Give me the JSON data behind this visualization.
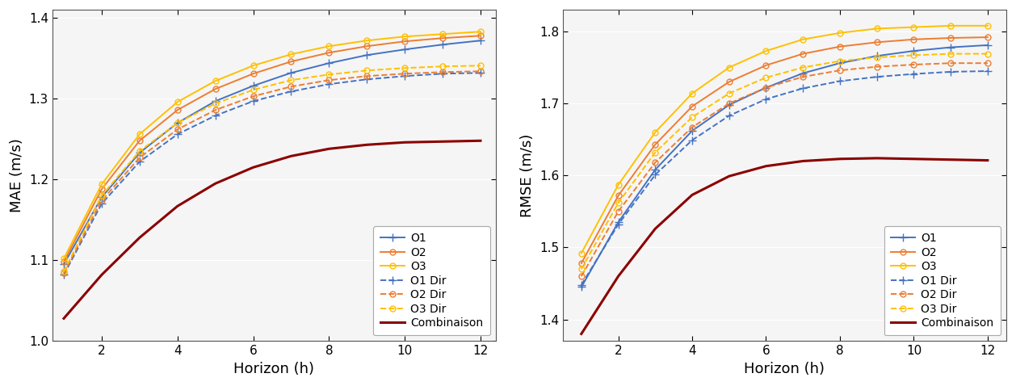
{
  "x": [
    1,
    2,
    3,
    4,
    5,
    6,
    7,
    8,
    9,
    10,
    11,
    12
  ],
  "mae": {
    "O1": [
      1.095,
      1.178,
      1.233,
      1.27,
      1.297,
      1.316,
      1.332,
      1.344,
      1.354,
      1.361,
      1.367,
      1.372
    ],
    "O2": [
      1.098,
      1.188,
      1.248,
      1.286,
      1.312,
      1.331,
      1.346,
      1.357,
      1.365,
      1.371,
      1.375,
      1.378
    ],
    "O3": [
      1.102,
      1.194,
      1.256,
      1.296,
      1.322,
      1.341,
      1.355,
      1.365,
      1.372,
      1.377,
      1.38,
      1.383
    ],
    "O1 Dir": [
      1.082,
      1.17,
      1.222,
      1.256,
      1.279,
      1.297,
      1.309,
      1.318,
      1.324,
      1.328,
      1.331,
      1.332
    ],
    "O2 Dir": [
      1.084,
      1.174,
      1.227,
      1.262,
      1.286,
      1.303,
      1.315,
      1.323,
      1.328,
      1.331,
      1.333,
      1.334
    ],
    "O3 Dir": [
      1.086,
      1.18,
      1.235,
      1.27,
      1.294,
      1.311,
      1.323,
      1.33,
      1.335,
      1.338,
      1.34,
      1.341
    ],
    "Combinaison": [
      1.028,
      1.082,
      1.128,
      1.167,
      1.195,
      1.215,
      1.229,
      1.238,
      1.243,
      1.246,
      1.247,
      1.248
    ]
  },
  "rmse": {
    "O1": [
      1.445,
      1.535,
      1.608,
      1.662,
      1.698,
      1.722,
      1.742,
      1.756,
      1.766,
      1.773,
      1.778,
      1.781
    ],
    "O2": [
      1.478,
      1.572,
      1.643,
      1.696,
      1.73,
      1.753,
      1.769,
      1.779,
      1.785,
      1.789,
      1.791,
      1.792
    ],
    "O3": [
      1.492,
      1.587,
      1.66,
      1.714,
      1.75,
      1.773,
      1.789,
      1.798,
      1.804,
      1.806,
      1.808,
      1.808
    ],
    "O1 Dir": [
      1.448,
      1.532,
      1.601,
      1.649,
      1.683,
      1.706,
      1.721,
      1.731,
      1.737,
      1.741,
      1.744,
      1.745
    ],
    "O2 Dir": [
      1.46,
      1.55,
      1.618,
      1.667,
      1.7,
      1.722,
      1.737,
      1.746,
      1.751,
      1.754,
      1.756,
      1.756
    ],
    "O3 Dir": [
      1.47,
      1.562,
      1.632,
      1.681,
      1.714,
      1.736,
      1.75,
      1.759,
      1.764,
      1.767,
      1.769,
      1.769
    ],
    "Combinaison": [
      1.38,
      1.46,
      1.526,
      1.573,
      1.599,
      1.613,
      1.62,
      1.623,
      1.624,
      1.623,
      1.622,
      1.621
    ]
  },
  "colors": {
    "O1": "#4472C4",
    "O2": "#ED7D31",
    "O3": "#FFC000",
    "O1 Dir": "#4472C4",
    "O2 Dir": "#ED7D31",
    "O3 Dir": "#FFC000",
    "Combinaison": "#8B0000"
  },
  "mae_ylim": [
    1.0,
    1.41
  ],
  "mae_yticks": [
    1.0,
    1.1,
    1.2,
    1.3,
    1.4
  ],
  "rmse_ylim": [
    1.37,
    1.83
  ],
  "rmse_yticks": [
    1.4,
    1.5,
    1.6,
    1.7,
    1.8
  ],
  "mae_xlim": [
    0.7,
    12.4
  ],
  "rmse_xlim": [
    0.5,
    12.5
  ],
  "xticks": [
    2,
    4,
    6,
    8,
    10,
    12
  ],
  "mae_ylabel": "MAE (m/s)",
  "rmse_ylabel": "RMSE (m/s)",
  "xlabel": "Horizon (h)",
  "legend_order": [
    "O1",
    "O2",
    "O3",
    "O1 Dir",
    "O2 Dir",
    "O3 Dir",
    "Combinaison"
  ]
}
